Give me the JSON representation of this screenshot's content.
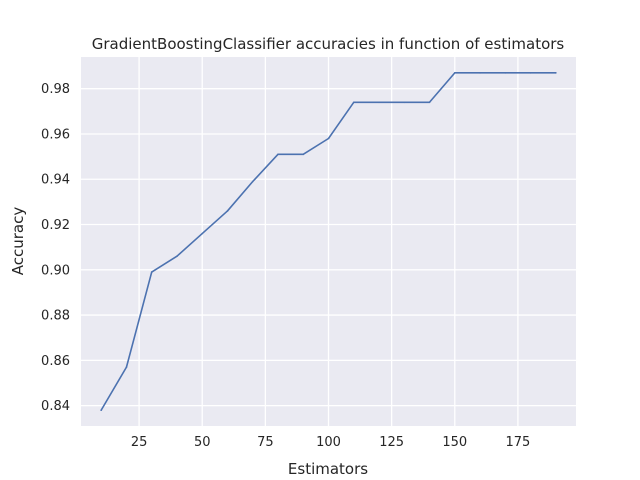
{
  "chart_data": {
    "type": "line",
    "title": "GradientBoostingClassifier accuracies in function of estimators",
    "xlabel": "Estimators",
    "ylabel": "Accuracy",
    "xlim": [
      2,
      198
    ],
    "ylim": [
      0.831,
      0.994
    ],
    "xticks": [
      25,
      50,
      75,
      100,
      125,
      150,
      175
    ],
    "yticks": [
      0.84,
      0.86,
      0.88,
      0.9,
      0.92,
      0.94,
      0.96,
      0.98
    ],
    "ytick_labels": [
      "0.84",
      "0.86",
      "0.88",
      "0.90",
      "0.92",
      "0.94",
      "0.96",
      "0.98"
    ],
    "grid": true,
    "background": "#eaeaf2",
    "series": [
      {
        "color": "#4c72b0",
        "x": [
          10,
          20,
          30,
          40,
          50,
          60,
          70,
          80,
          90,
          100,
          110,
          120,
          130,
          140,
          150,
          160,
          170,
          180,
          190
        ],
        "y": [
          0.838,
          0.857,
          0.899,
          0.906,
          0.916,
          0.926,
          0.939,
          0.951,
          0.951,
          0.958,
          0.974,
          0.974,
          0.974,
          0.974,
          0.987,
          0.987,
          0.987,
          0.987,
          0.987
        ]
      }
    ]
  }
}
